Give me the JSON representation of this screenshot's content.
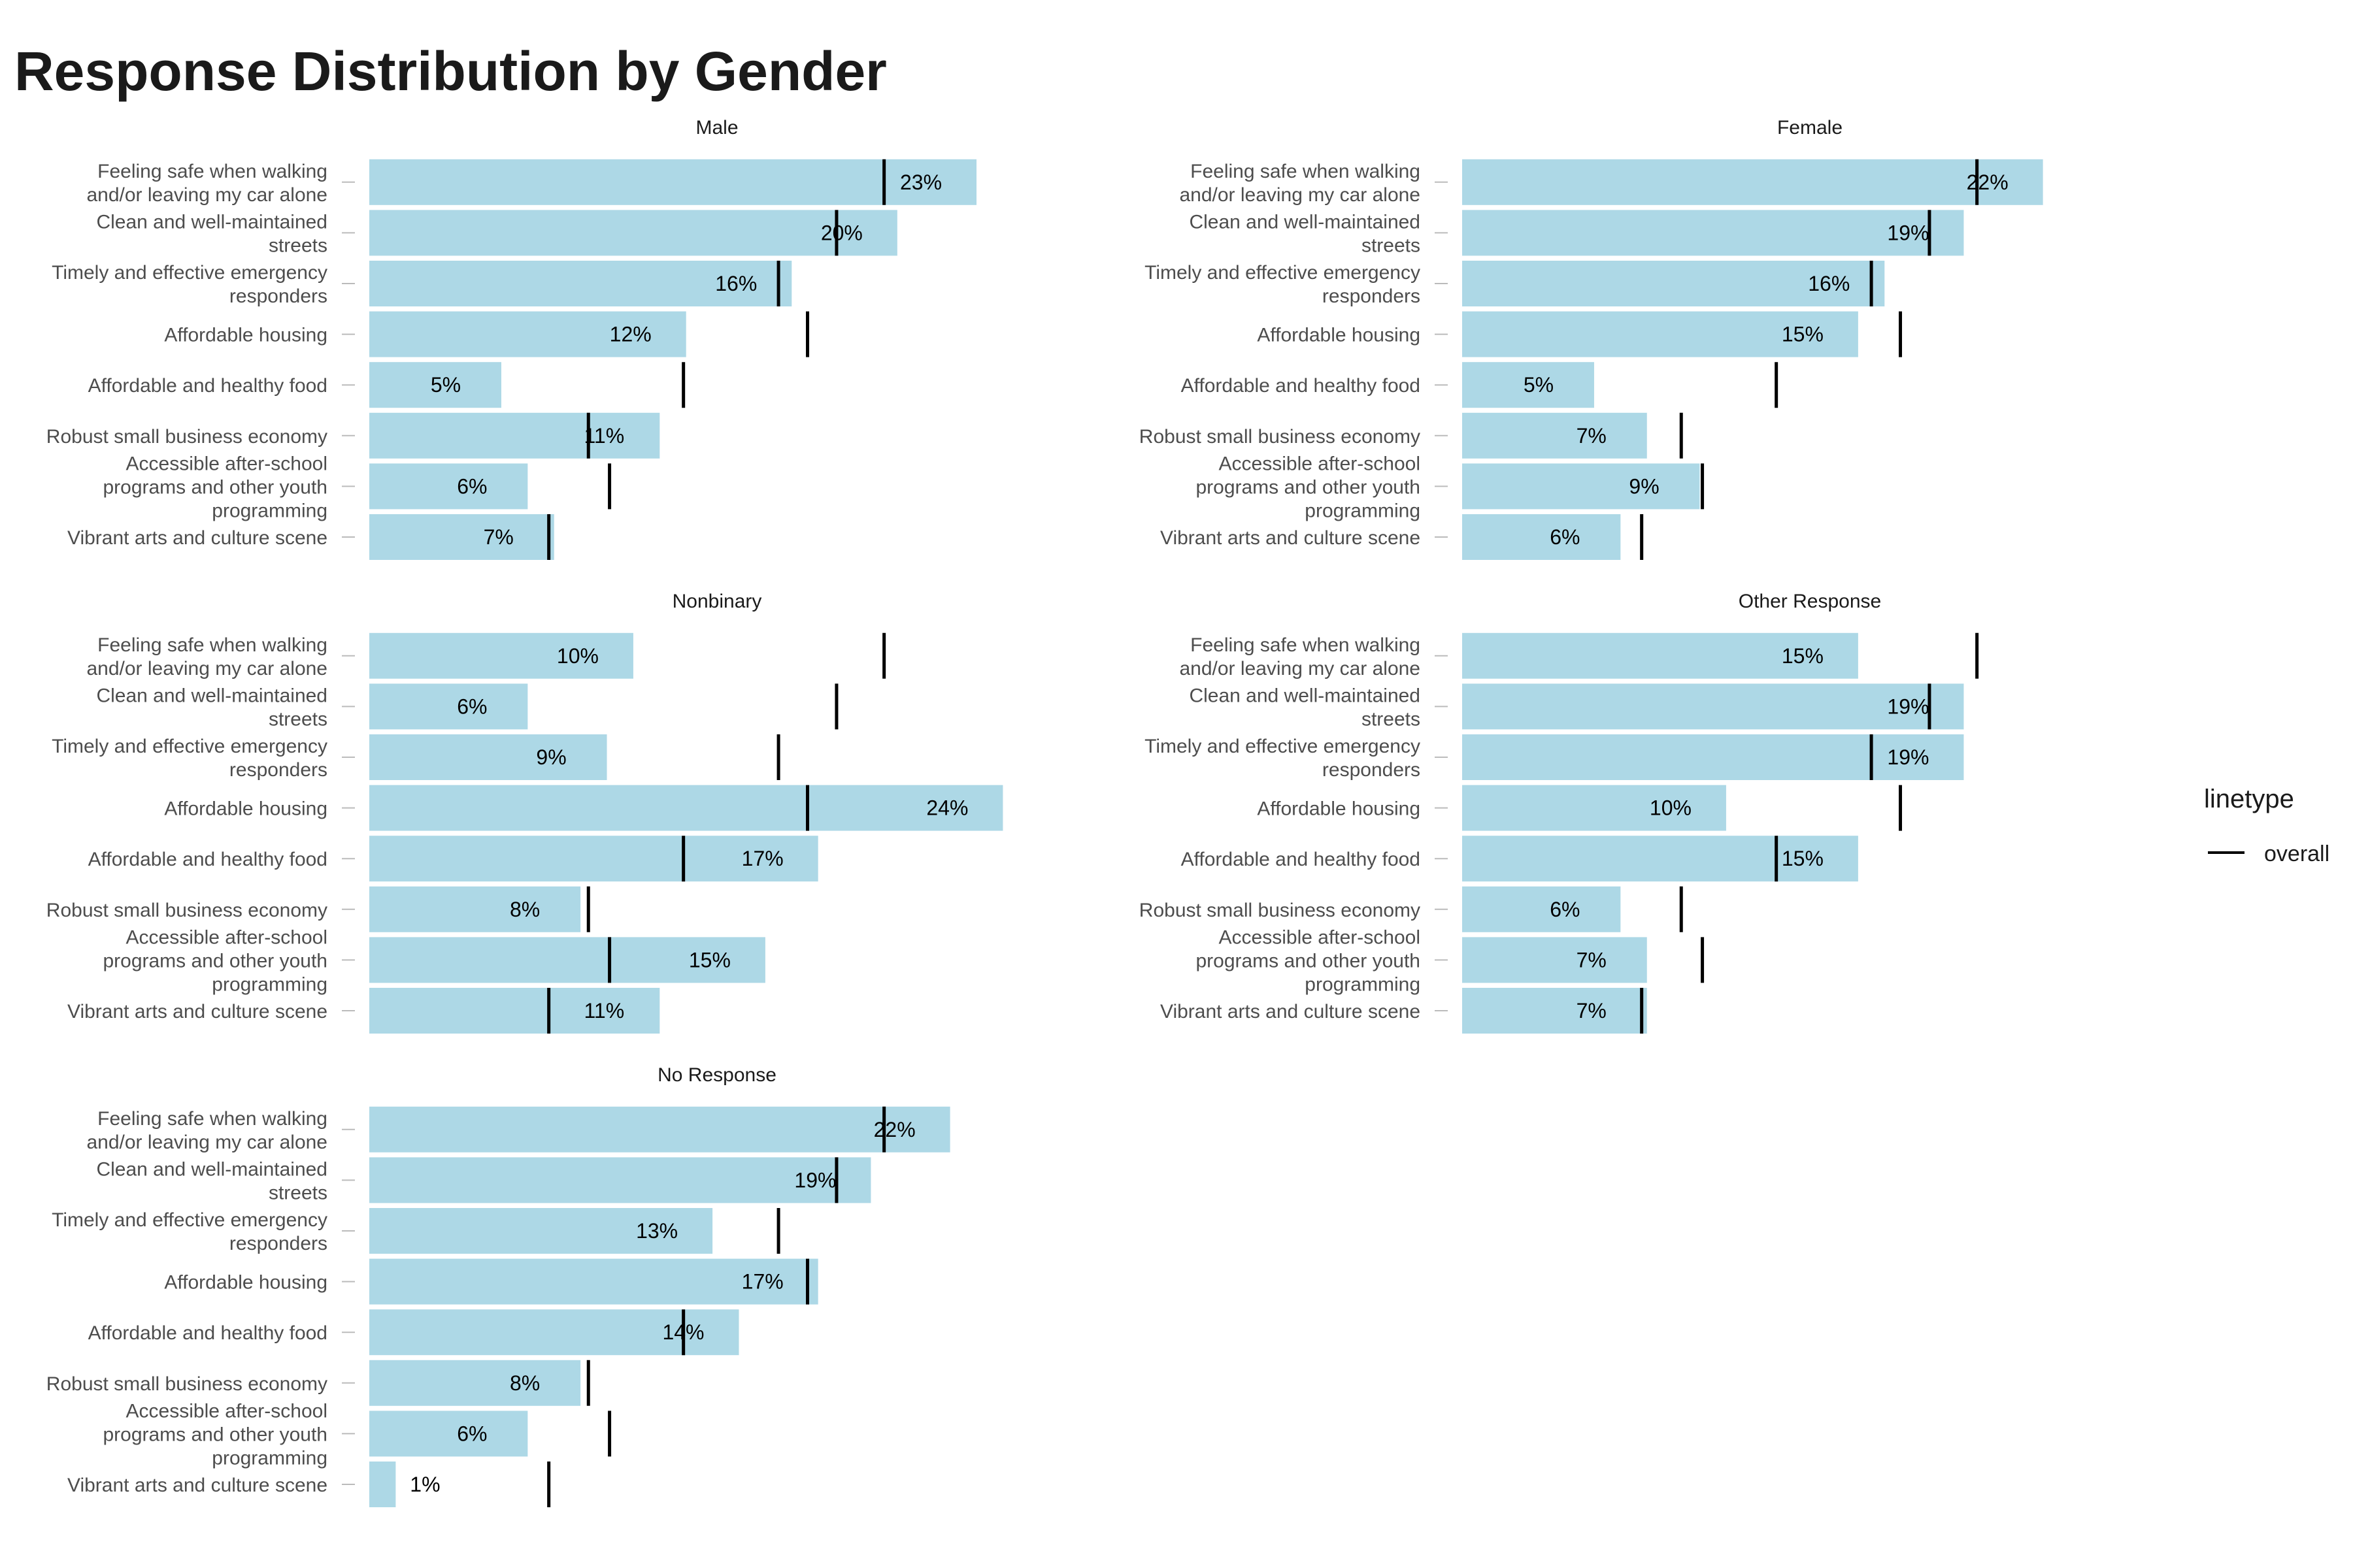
{
  "chart_data": {
    "type": "bar",
    "orientation": "horizontal",
    "title": "Response Distribution by Gender",
    "categories": [
      "Feeling safe when walking and/or leaving my car alone",
      "Clean and well-maintained streets",
      "Timely and effective emergency responders",
      "Affordable housing",
      "Affordable and healthy food",
      "Robust small business economy",
      "Accessible after-school programs and other youth programming",
      "Vibrant arts and culture scene"
    ],
    "category_lines": [
      [
        "Feeling safe when walking",
        "and/or leaving my car alone"
      ],
      [
        "Clean and well-maintained",
        "streets"
      ],
      [
        "Timely and effective emergency",
        "responders"
      ],
      [
        "Affordable housing"
      ],
      [
        "Affordable and healthy food"
      ],
      [
        "Robust small business economy"
      ],
      [
        "Accessible after-school",
        "programs and other youth",
        "programming"
      ],
      [
        "Vibrant arts and culture scene"
      ]
    ],
    "overall": [
      19.5,
      17.7,
      15.5,
      16.6,
      11.9,
      8.3,
      9.1,
      6.8
    ],
    "xlim": [
      0,
      25.5
    ],
    "grid": false,
    "bar_color": "#ADD8E6",
    "line_color": "#000000",
    "panels": [
      {
        "name": "Male",
        "values": [
          23,
          20,
          16,
          12,
          5,
          11,
          6,
          7
        ],
        "labels": [
          "23%",
          "20%",
          "16%",
          "12%",
          "5%",
          "11%",
          "6%",
          "7%"
        ]
      },
      {
        "name": "Female",
        "values": [
          22,
          19,
          16,
          15,
          5,
          7,
          9,
          6
        ],
        "labels": [
          "22%",
          "19%",
          "16%",
          "15%",
          "5%",
          "7%",
          "9%",
          "6%"
        ]
      },
      {
        "name": "Nonbinary",
        "values": [
          10,
          6,
          9,
          24,
          17,
          8,
          15,
          11
        ],
        "labels": [
          "10%",
          "6%",
          "9%",
          "24%",
          "17%",
          "8%",
          "15%",
          "11%"
        ]
      },
      {
        "name": "Other Response",
        "values": [
          15,
          19,
          19,
          10,
          15,
          6,
          7,
          7
        ],
        "labels": [
          "15%",
          "19%",
          "19%",
          "10%",
          "15%",
          "6%",
          "7%",
          "7%"
        ]
      },
      {
        "name": "No Response",
        "values": [
          22,
          19,
          13,
          17,
          14,
          8,
          6,
          1
        ],
        "labels": [
          "22%",
          "19%",
          "13%",
          "17%",
          "14%",
          "8%",
          "6%",
          "1%"
        ]
      }
    ],
    "legend": {
      "title": "linetype",
      "entries": [
        "overall"
      ],
      "placement": "right"
    }
  }
}
